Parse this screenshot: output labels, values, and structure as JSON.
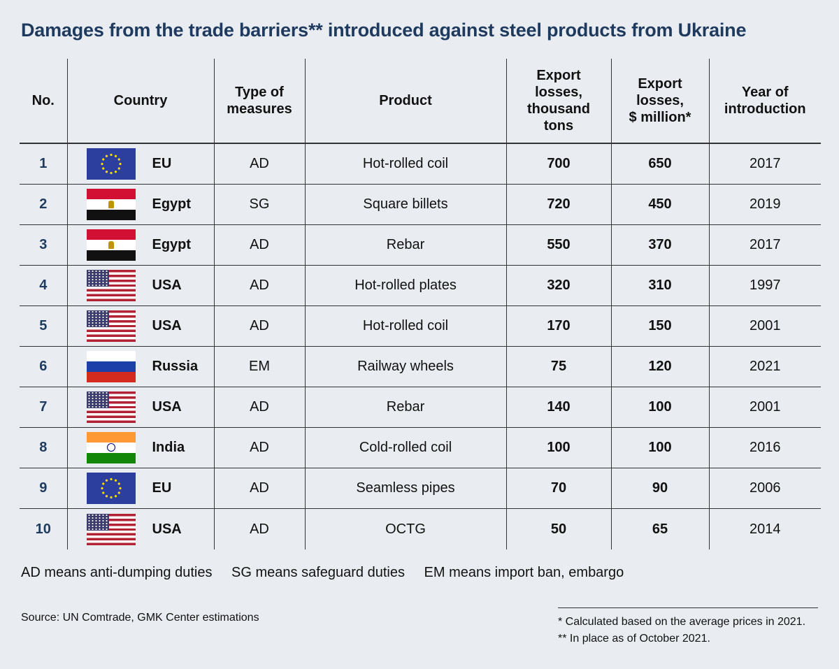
{
  "title": "Damages from the trade barriers** introduced against steel products from Ukraine",
  "chart_data": {
    "type": "table",
    "columns": [
      "No.",
      "Country",
      "Type of measures",
      "Product",
      "Export losses, thousand tons",
      "Export losses, $ million*",
      "Year of introduction"
    ],
    "rows": [
      {
        "no": "1",
        "flag": "eu-flag",
        "country": "EU",
        "measure": "AD",
        "product": "Hot-rolled coil",
        "tons": "700",
        "usd": "650",
        "year": "2017"
      },
      {
        "no": "2",
        "flag": "egypt-flag",
        "country": "Egypt",
        "measure": "SG",
        "product": "Square billets",
        "tons": "720",
        "usd": "450",
        "year": "2019"
      },
      {
        "no": "3",
        "flag": "egypt-flag",
        "country": "Egypt",
        "measure": "AD",
        "product": "Rebar",
        "tons": "550",
        "usd": "370",
        "year": "2017"
      },
      {
        "no": "4",
        "flag": "usa-flag",
        "country": "USA",
        "measure": "AD",
        "product": "Hot-rolled plates",
        "tons": "320",
        "usd": "310",
        "year": "1997"
      },
      {
        "no": "5",
        "flag": "usa-flag",
        "country": "USA",
        "measure": "AD",
        "product": "Hot-rolled coil",
        "tons": "170",
        "usd": "150",
        "year": "2001"
      },
      {
        "no": "6",
        "flag": "russia-flag",
        "country": "Russia",
        "measure": "EM",
        "product": "Railway wheels",
        "tons": "75",
        "usd": "120",
        "year": "2021"
      },
      {
        "no": "7",
        "flag": "usa-flag",
        "country": "USA",
        "measure": "AD",
        "product": "Rebar",
        "tons": "140",
        "usd": "100",
        "year": "2001"
      },
      {
        "no": "8",
        "flag": "india-flag",
        "country": "India",
        "measure": "AD",
        "product": "Cold-rolled coil",
        "tons": "100",
        "usd": "100",
        "year": "2016"
      },
      {
        "no": "9",
        "flag": "eu-flag",
        "country": "EU",
        "measure": "AD",
        "product": "Seamless pipes",
        "tons": "70",
        "usd": "90",
        "year": "2006"
      },
      {
        "no": "10",
        "flag": "usa-flag",
        "country": "USA",
        "measure": "AD",
        "product": "OCTG",
        "tons": "50",
        "usd": "65",
        "year": "2014"
      }
    ]
  },
  "header": {
    "no": "No.",
    "country": "Country",
    "measures_1": "Type of",
    "measures_2": "measures",
    "product": "Product",
    "tons_1": "Export",
    "tons_2": "losses,",
    "tons_3": "thousand",
    "tons_4": "tons",
    "usd_1": "Export",
    "usd_2": "losses,",
    "usd_3": "$ million*",
    "year_1": "Year of",
    "year_2": "introduction"
  },
  "legend": {
    "ad": "AD means anti-dumping duties",
    "sg": "SG means safeguard duties",
    "em": "EM means import ban, embargo"
  },
  "source": "Source: UN Comtrade, GMK Center estimations",
  "notes": {
    "note1": "* Calculated based on the average prices in 2021.",
    "note2": "** In place as of October 2021."
  },
  "colors": {
    "background": "#e9edf1",
    "title": "#1f3a5f",
    "row_number": "#1f3a5f"
  }
}
